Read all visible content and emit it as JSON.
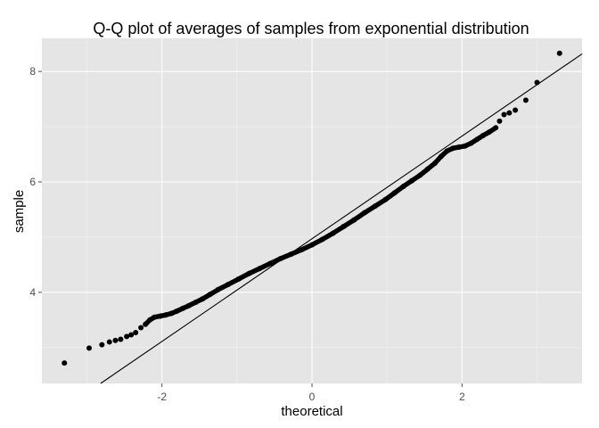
{
  "chart_data": {
    "type": "scatter",
    "title": "Q-Q plot of averages of samples from exponential distribution",
    "xlabel": "theoretical",
    "ylabel": "sample",
    "xlim": [
      -3.6,
      3.6
    ],
    "ylim": [
      2.35,
      8.6
    ],
    "x_ticks": [
      -2,
      0,
      2
    ],
    "y_ticks": [
      4,
      6,
      8
    ],
    "grid": true,
    "reference_line": {
      "intercept": 4.97,
      "slope": 0.93
    },
    "points": [
      [
        -3.3,
        2.72
      ],
      [
        -2.97,
        2.99
      ],
      [
        -2.8,
        3.05
      ],
      [
        -2.7,
        3.1
      ],
      [
        -2.62,
        3.13
      ],
      [
        -2.55,
        3.15
      ],
      [
        -2.47,
        3.2
      ],
      [
        -2.41,
        3.23
      ],
      [
        -2.35,
        3.27
      ],
      [
        -2.28,
        3.36
      ],
      [
        -2.22,
        3.42
      ],
      [
        -2.16,
        3.5
      ],
      [
        -2.1,
        3.55
      ],
      [
        -2.02,
        3.57
      ],
      [
        -1.95,
        3.59
      ],
      [
        -1.87,
        3.62
      ],
      [
        -1.8,
        3.66
      ],
      [
        -1.72,
        3.71
      ],
      [
        -1.64,
        3.76
      ],
      [
        -1.55,
        3.82
      ],
      [
        -1.46,
        3.88
      ],
      [
        -1.36,
        3.96
      ],
      [
        -1.25,
        4.05
      ],
      [
        -1.12,
        4.14
      ],
      [
        -0.98,
        4.24
      ],
      [
        -0.84,
        4.34
      ],
      [
        -0.7,
        4.43
      ],
      [
        -0.56,
        4.52
      ],
      [
        -0.42,
        4.61
      ],
      [
        -0.28,
        4.69
      ],
      [
        -0.14,
        4.77
      ],
      [
        0.0,
        4.86
      ],
      [
        0.14,
        4.96
      ],
      [
        0.28,
        5.07
      ],
      [
        0.42,
        5.19
      ],
      [
        0.56,
        5.31
      ],
      [
        0.7,
        5.44
      ],
      [
        0.84,
        5.56
      ],
      [
        0.98,
        5.68
      ],
      [
        1.1,
        5.8
      ],
      [
        1.22,
        5.92
      ],
      [
        1.33,
        6.02
      ],
      [
        1.44,
        6.12
      ],
      [
        1.54,
        6.23
      ],
      [
        1.64,
        6.34
      ],
      [
        1.72,
        6.46
      ],
      [
        1.8,
        6.56
      ],
      [
        1.88,
        6.61
      ],
      [
        1.96,
        6.63
      ],
      [
        2.04,
        6.65
      ],
      [
        2.12,
        6.7
      ],
      [
        2.2,
        6.77
      ],
      [
        2.28,
        6.84
      ],
      [
        2.36,
        6.9
      ],
      [
        2.45,
        6.98
      ],
      [
        2.5,
        7.1
      ],
      [
        2.56,
        7.22
      ],
      [
        2.63,
        7.25
      ],
      [
        2.71,
        7.3
      ],
      [
        2.85,
        7.48
      ],
      [
        3.0,
        7.8
      ],
      [
        3.3,
        8.33
      ]
    ]
  }
}
